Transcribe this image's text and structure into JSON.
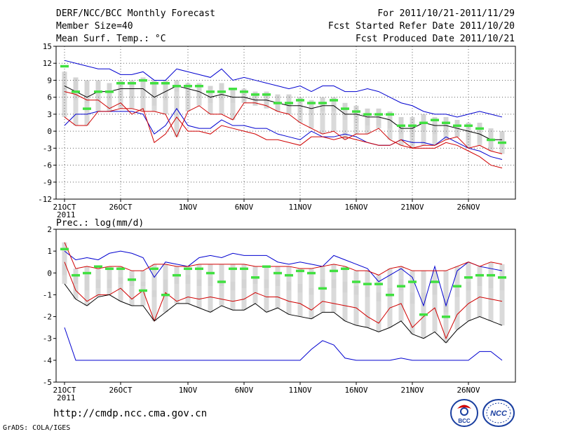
{
  "header": {
    "title": "DERF/NCC/BCC Monthly Forecast",
    "member_size": "Member Size=40",
    "variable": "Mean Surf. Temp.: °C",
    "for_range": "For 2011/10/21-2011/11/29",
    "fcst_started": "Fcst Started Refer Date 2011/10/20",
    "fcst_produced": "Fcst Produced Date 2011/10/21"
  },
  "footer": {
    "url": "http://cmdp.ncc.cma.gov.cn",
    "grads": "GrADS: COLA/IGES",
    "logo_bcc": "BCC",
    "logo_ncc": "NCC"
  },
  "colors": {
    "envelope": "#0000d0",
    "spread": "#d00000",
    "mean": "#000000",
    "box": "#d4d4d4",
    "marker": "#40e040",
    "axis": "#000000",
    "grid": "#666666"
  },
  "chart_data": [
    {
      "type": "line",
      "title": "Mean Surf. Temp.: °C",
      "xlabel": "",
      "ylabel": "",
      "ylim": [
        -12,
        15
      ],
      "yticks": [
        15,
        12,
        9,
        6,
        3,
        0,
        -3,
        -6,
        -9,
        -12
      ],
      "xtick_labels": [
        "21OCT",
        "26OCT",
        "1NOV",
        "6NOV",
        "11NOV",
        "16NOV",
        "21NOV",
        "26NOV"
      ],
      "xtick_days": [
        0,
        5,
        11,
        16,
        21,
        26,
        31,
        36
      ],
      "year_label": "2011",
      "grid": true,
      "days": 40,
      "series": [
        {
          "name": "max",
          "values": [
            2.5,
            1,
            1,
            3.5,
            3.5,
            4,
            4,
            3.5,
            3.5,
            3,
            -1,
            3.5,
            4.5,
            3,
            3,
            2,
            5,
            5,
            4.5,
            3.5,
            3,
            1.5,
            0.5,
            -0.5,
            0,
            -1.5,
            -0.5,
            -0.5,
            0.5,
            -1.5,
            -2.5,
            -3,
            -2.5,
            -2.5,
            -1.5,
            -1,
            -3,
            -2.5,
            -3.5,
            -4
          ]
        },
        {
          "name": "upper",
          "values": [
            12.5,
            12,
            11.5,
            11,
            11,
            10,
            10,
            10.5,
            9,
            9,
            11,
            10.5,
            10,
            9.5,
            11,
            9,
            9.5,
            9,
            8.5,
            8,
            7.5,
            8,
            7,
            8,
            8,
            7,
            7,
            7.5,
            7,
            6,
            5,
            4.5,
            3.5,
            3,
            3,
            2.5,
            3,
            3.5,
            3,
            2.5
          ]
        },
        {
          "name": "lower",
          "values": [
            1,
            3,
            3,
            3.5,
            3.5,
            3.5,
            3.5,
            3,
            -0.5,
            1,
            4,
            1,
            0.5,
            0.5,
            2,
            1,
            1,
            0.5,
            0.5,
            -0.5,
            -1,
            -1.5,
            0,
            -1,
            -1,
            -0.5,
            -1,
            -2,
            -2.5,
            -2.5,
            -1.5,
            -2,
            -2,
            -2.5,
            -1,
            -2,
            -3,
            -3.5,
            -4.5,
            -5
          ]
        },
        {
          "name": "min",
          "values": [
            7,
            6.5,
            5.5,
            5.5,
            4,
            5,
            3,
            4,
            -2,
            -0.5,
            2.5,
            0,
            0,
            -0.5,
            1,
            0.5,
            0,
            -0.5,
            -1.5,
            -1.5,
            -2,
            -2.5,
            -1,
            -1,
            -1.5,
            -1,
            -1.5,
            -2,
            -2.5,
            -2.5,
            -1.5,
            -3,
            -3,
            -3,
            -2,
            -2.5,
            -3.5,
            -4.5,
            -6,
            -6.5
          ]
        },
        {
          "name": "mean",
          "values": [
            11.5,
            7,
            4,
            7,
            7,
            8.5,
            8.5,
            9,
            8.5,
            8.5,
            8,
            8,
            8,
            7,
            7,
            7.5,
            7,
            6.5,
            6.5,
            5,
            5,
            5.5,
            5,
            5,
            5.5,
            4,
            3.5,
            3,
            3,
            3,
            1,
            1,
            1.5,
            2,
            1.5,
            1,
            1,
            0.5,
            -1.5,
            -2
          ]
        },
        {
          "name": "q90",
          "values": [
            10.5,
            9.5,
            9,
            9,
            8.5,
            9,
            9,
            9.5,
            9,
            9,
            9,
            8.5,
            8.5,
            8,
            8.5,
            7.5,
            7.5,
            7,
            7,
            6.5,
            6.5,
            6,
            5.5,
            6,
            6,
            5,
            4.5,
            4,
            4,
            3.5,
            2.5,
            2.5,
            3,
            2.5,
            2.5,
            2,
            1.5,
            1.5,
            0.5,
            0
          ]
        },
        {
          "name": "q50",
          "values": [
            8,
            7,
            6,
            7,
            7,
            7.5,
            7.5,
            7.5,
            6,
            7,
            8,
            7.5,
            7,
            6,
            6.5,
            6,
            6,
            5.5,
            5.5,
            5,
            4.5,
            4.5,
            4,
            4.5,
            4.5,
            3,
            3,
            2.5,
            2.5,
            2,
            0.5,
            0.5,
            1.5,
            1,
            1,
            0.5,
            0,
            -0.5,
            -1.5,
            -1.5
          ]
        },
        {
          "name": "q10",
          "values": [
            6.5,
            5.5,
            5,
            5.5,
            5.5,
            6,
            6,
            6,
            4.5,
            5.5,
            7,
            6,
            6,
            5,
            5.5,
            5,
            5,
            4.5,
            4,
            3.5,
            3,
            3,
            3,
            3.5,
            3.5,
            2,
            1.5,
            1,
            1,
            0.5,
            -0.5,
            -1,
            0,
            -0.5,
            -0.5,
            -1,
            -1.5,
            -2,
            -3,
            -3
          ]
        }
      ]
    },
    {
      "type": "line",
      "title": "Prec.: log(mm/d)",
      "xlabel": "",
      "ylabel": "",
      "ylim": [
        -5,
        2
      ],
      "yticks": [
        2,
        1,
        0,
        -1,
        -2,
        -3,
        -4,
        -5
      ],
      "xtick_labels": [
        "21OCT",
        "26OCT",
        "1NOV",
        "6NOV",
        "11NOV",
        "16NOV",
        "21NOV",
        "26NOV"
      ],
      "xtick_days": [
        0,
        5,
        11,
        16,
        21,
        26,
        31,
        36
      ],
      "year_label": "2011",
      "grid": false,
      "days": 40,
      "series": [
        {
          "name": "max",
          "values": [
            1.4,
            0.2,
            0.3,
            0.2,
            0.3,
            0.3,
            0.1,
            0.1,
            0.4,
            0.4,
            0.3,
            0.3,
            0.4,
            0.4,
            0.4,
            0.4,
            0.4,
            0.3,
            0.3,
            0.3,
            0.3,
            0.2,
            0.2,
            0.3,
            0.4,
            0.3,
            0.1,
            0.1,
            -0.1,
            0.2,
            0.3,
            0.1,
            0.1,
            0.1,
            0.1,
            0.3,
            0.5,
            0.3,
            0.5,
            0.4
          ]
        },
        {
          "name": "upper",
          "values": [
            1.0,
            0.6,
            0.7,
            0.6,
            0.9,
            1.0,
            0.9,
            0.7,
            -0.2,
            0.5,
            0.4,
            0.3,
            0.7,
            0.8,
            0.7,
            0.9,
            0.8,
            0.8,
            0.8,
            0.5,
            0.4,
            0.5,
            0.4,
            0.3,
            0.8,
            0.6,
            0.4,
            0.2,
            -0.4,
            -0.1,
            0.2,
            -0.2,
            -1.5,
            0.3,
            -1.5,
            0.1,
            0.5,
            0.3,
            0.2,
            0.1
          ]
        },
        {
          "name": "lower",
          "values": [
            -2.5,
            -4,
            -4,
            -4,
            -4,
            -4,
            -4,
            -4,
            -4,
            -4,
            -4,
            -4,
            -4,
            -4,
            -4,
            -4,
            -4,
            -4,
            -4,
            -4,
            -4,
            -4,
            -3.5,
            -3.1,
            -3.3,
            -3.9,
            -4,
            -4,
            -4,
            -4,
            -3.9,
            -4,
            -4,
            -4,
            -4,
            -4,
            -4,
            -3.6,
            -3.6,
            -4
          ]
        },
        {
          "name": "min",
          "values": [
            0.5,
            -0.8,
            -1.3,
            -1,
            -1,
            -0.7,
            -1.2,
            -0.8,
            -2.2,
            -0.9,
            -1.3,
            -1.1,
            -1.2,
            -1.1,
            -1.2,
            -1.3,
            -1.2,
            -0.9,
            -1.1,
            -1.1,
            -1.3,
            -1.4,
            -1.7,
            -1.3,
            -1.4,
            -1.5,
            -1.6,
            -2.0,
            -2.3,
            -1.6,
            -1.4,
            -2.5,
            -2.0,
            -1.6,
            -3.0,
            -1.9,
            -1.4,
            -1.1,
            -1.2,
            -1.3
          ]
        },
        {
          "name": "mean",
          "values": [
            1.1,
            -0.1,
            0,
            0.3,
            0.2,
            0.2,
            -0.3,
            -0.8,
            0.2,
            -1.0,
            -0.1,
            0.2,
            0.2,
            0,
            -0.4,
            0.2,
            0.2,
            -0.2,
            0.3,
            0,
            -0.1,
            0.1,
            0,
            -0.7,
            0.1,
            0.2,
            -0.4,
            -0.5,
            -0.5,
            -1.0,
            -0.6,
            -0.4,
            -1.9,
            -0.4,
            -2.0,
            -0.6,
            -0.2,
            -0.1,
            -0.1,
            -0.2
          ]
        },
        {
          "name": "q90",
          "values": [
            0.4,
            -0.1,
            -0.1,
            -0.3,
            -0.3,
            -0.2,
            -0.1,
            -0.4,
            -0.8,
            -0.3,
            -0.2,
            -0.1,
            -0.3,
            -0.2,
            -0.3,
            -0.4,
            -0.3,
            -0.2,
            -0.3,
            -0.3,
            -0.4,
            -0.5,
            -0.7,
            -0.3,
            -0.3,
            -0.4,
            -0.6,
            -0.6,
            -0.9,
            -0.7,
            -0.3,
            -0.9,
            -0.9,
            -0.5,
            -1.2,
            -0.6,
            -0.4,
            -0.2,
            -0.3,
            -0.3
          ]
        },
        {
          "name": "q50",
          "values": [
            -0.5,
            -1.2,
            -1.5,
            -1.1,
            -1,
            -1.3,
            -1.5,
            -1.5,
            -2.2,
            -1.8,
            -1.4,
            -1.4,
            -1.6,
            -1.8,
            -1.5,
            -1.7,
            -1.7,
            -1.4,
            -1.8,
            -1.6,
            -1.9,
            -2,
            -2.1,
            -1.8,
            -1.8,
            -2.2,
            -2.4,
            -2.5,
            -2.7,
            -2.5,
            -2.2,
            -2.8,
            -3,
            -2.7,
            -3.2,
            -2.6,
            -2.2,
            -2,
            -2.2,
            -2.4
          ]
        },
        {
          "name": "q10",
          "values": [
            -0.1,
            -0.5,
            -0.8,
            -0.7,
            -0.7,
            -0.5,
            -0.6,
            -0.6,
            -1.1,
            -0.9,
            -0.5,
            -0.5,
            -0.6,
            -0.6,
            -0.6,
            -0.8,
            -0.7,
            -0.5,
            -0.7,
            -0.6,
            -0.8,
            -0.9,
            -1.0,
            -0.7,
            -0.7,
            -0.9,
            -1.0,
            -1.1,
            -1.3,
            -1.1,
            -0.8,
            -1.4,
            -1.4,
            -1.0,
            -1.8,
            -1.1,
            -0.8,
            -0.6,
            -0.7,
            -0.8
          ]
        }
      ]
    }
  ]
}
